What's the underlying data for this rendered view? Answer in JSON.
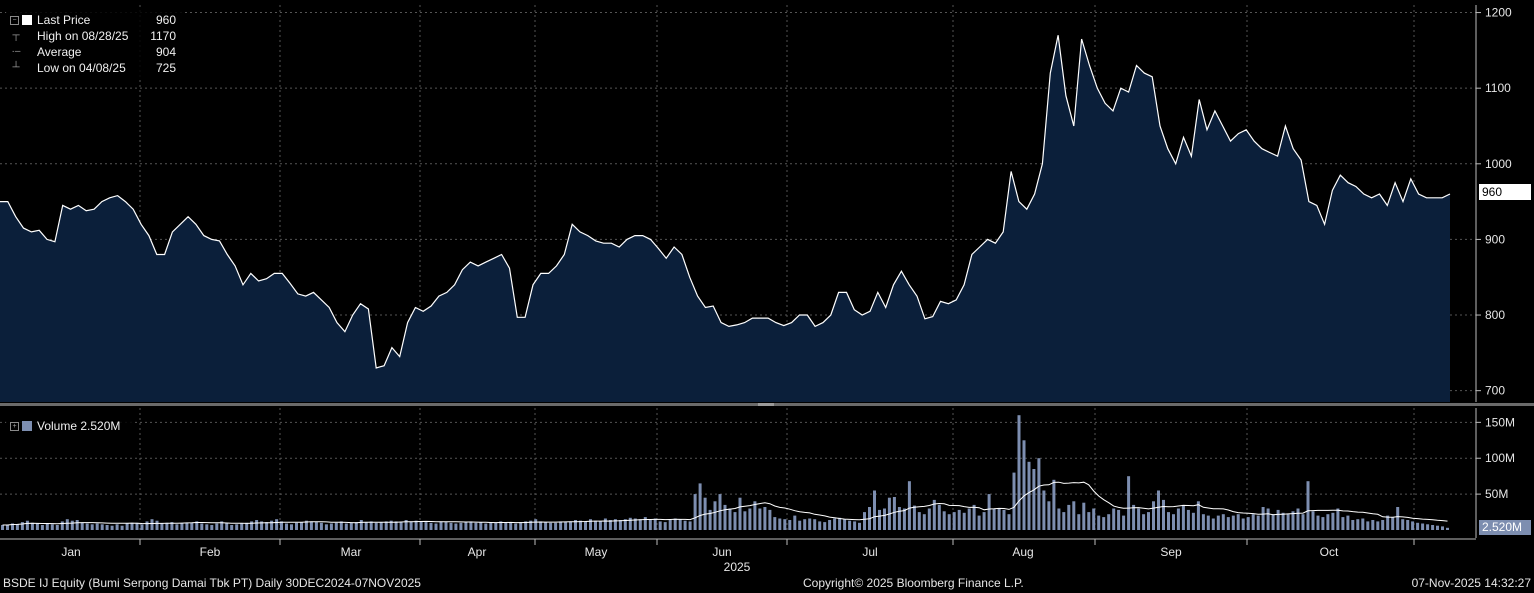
{
  "legend": {
    "last_price_label": "Last Price",
    "last_price_value": "960",
    "high_label": "High on 08/28/25",
    "high_value": "1170",
    "average_label": "Average",
    "average_value": "904",
    "low_label": "Low on 04/08/25",
    "low_value": "725",
    "volume_label": "Volume 2.520M"
  },
  "price_tag": "960",
  "volume_tag": "2.520M",
  "footer": {
    "left": "BSDE IJ Equity (Bumi Serpong Damai Tbk PT) Daily 30DEC2024-07NOV2025",
    "center": "Copyright© 2025 Bloomberg Finance L.P.",
    "right": "07-Nov-2025 14:32:27"
  },
  "colors": {
    "background": "#000000",
    "price_fill": "#0b1f3a",
    "price_line": "#ffffff",
    "volume_bar": "#7d8eb0",
    "volume_avg_line": "#ffffff",
    "grid": "#555555"
  },
  "chart_data": [
    {
      "type": "area",
      "series_name": "Last Price",
      "x_label": "2025",
      "month_labels": [
        "Jan",
        "Feb",
        "Mar",
        "Apr",
        "May",
        "Jun",
        "Jul",
        "Aug",
        "Sep",
        "Oct"
      ],
      "y_ticks": [
        700,
        800,
        900,
        1000,
        1100,
        1200
      ],
      "ylim": [
        685,
        1210
      ],
      "grid": true,
      "y_axis": "right",
      "values": [
        950,
        950,
        930,
        915,
        910,
        912,
        900,
        897,
        945,
        940,
        945,
        938,
        940,
        950,
        955,
        958,
        950,
        940,
        920,
        905,
        880,
        880,
        910,
        920,
        930,
        920,
        905,
        900,
        898,
        880,
        865,
        840,
        855,
        845,
        848,
        855,
        855,
        842,
        828,
        825,
        830,
        820,
        810,
        790,
        778,
        800,
        815,
        808,
        730,
        733,
        757,
        745,
        790,
        810,
        805,
        812,
        825,
        830,
        840,
        860,
        870,
        865,
        870,
        875,
        880,
        862,
        797,
        797,
        840,
        855,
        855,
        865,
        880,
        920,
        910,
        905,
        898,
        895,
        895,
        890,
        900,
        905,
        905,
        900,
        888,
        875,
        890,
        880,
        850,
        825,
        810,
        812,
        790,
        785,
        787,
        790,
        796,
        796,
        796,
        790,
        786,
        790,
        800,
        800,
        785,
        790,
        800,
        830,
        830,
        807,
        800,
        805,
        830,
        810,
        840,
        858,
        840,
        825,
        795,
        798,
        818,
        815,
        820,
        840,
        880,
        890,
        900,
        895,
        910,
        990,
        950,
        940,
        960,
        1000,
        1120,
        1170,
        1090,
        1050,
        1165,
        1130,
        1100,
        1080,
        1070,
        1100,
        1095,
        1130,
        1120,
        1115,
        1050,
        1020,
        1000,
        1035,
        1010,
        1085,
        1045,
        1070,
        1050,
        1030,
        1040,
        1045,
        1030,
        1020,
        1015,
        1010,
        1050,
        1020,
        1005,
        950,
        945,
        920,
        965,
        985,
        975,
        970,
        960,
        955,
        960,
        945,
        975,
        950,
        980,
        960,
        955,
        955,
        955,
        960
      ]
    },
    {
      "type": "bar",
      "series_name": "Volume",
      "y_ticks": [
        "50M",
        "100M",
        "150M"
      ],
      "y_tick_values": [
        50,
        100,
        150
      ],
      "units": "M",
      "ylim": [
        0,
        170
      ],
      "last_value": 2.52,
      "values": [
        7,
        7,
        9,
        8,
        11,
        13,
        10,
        9,
        7,
        9,
        8,
        7,
        12,
        15,
        13,
        14,
        10,
        9,
        8,
        9,
        8,
        7,
        6,
        8,
        6,
        9,
        10,
        10,
        8,
        12,
        15,
        13,
        9,
        10,
        11,
        8,
        9,
        10,
        10,
        12,
        9,
        8,
        7,
        9,
        12,
        10,
        7,
        8,
        9,
        10,
        12,
        14,
        12,
        11,
        13,
        15,
        12,
        9,
        8,
        10,
        11,
        13,
        12,
        11,
        10,
        8,
        9,
        10,
        12,
        9,
        10,
        11,
        14,
        11,
        12,
        10,
        11,
        12,
        13,
        12,
        11,
        14,
        12,
        13,
        12,
        11,
        10,
        9,
        12,
        11,
        10,
        9,
        10,
        11,
        12,
        10,
        11,
        9,
        10,
        10,
        12,
        11,
        10,
        9,
        11,
        12,
        13,
        15,
        12,
        11,
        10,
        10,
        12,
        11,
        12,
        14,
        13,
        12,
        15,
        13,
        12,
        16,
        14,
        15,
        14,
        15,
        17,
        16,
        15,
        18,
        14,
        16,
        12,
        11,
        14,
        16,
        15,
        13,
        12,
        50,
        65,
        45,
        28,
        40,
        50,
        35,
        30,
        25,
        45,
        26,
        30,
        40,
        30,
        32,
        28,
        18,
        16,
        15,
        14,
        20,
        13,
        15,
        16,
        15,
        12,
        11,
        14,
        16,
        17,
        15,
        13,
        12,
        10,
        25,
        32,
        55,
        28,
        30,
        45,
        46,
        32,
        30,
        68,
        34,
        25,
        22,
        30,
        42,
        35,
        26,
        22,
        25,
        28,
        24,
        30,
        35,
        20,
        25,
        50,
        30,
        30,
        28,
        22,
        80,
        160,
        125,
        95,
        85,
        100,
        55,
        40,
        70,
        30,
        25,
        35,
        40,
        22,
        38,
        25,
        30,
        20,
        18,
        22,
        30,
        28,
        20,
        75,
        35,
        30,
        22,
        25,
        40,
        55,
        42,
        25,
        22,
        30,
        35,
        28,
        24,
        40,
        22,
        20,
        16,
        20,
        22,
        18,
        20,
        22,
        16,
        18,
        22,
        20,
        32,
        30,
        22,
        28,
        24,
        22,
        26,
        30,
        22,
        68,
        26,
        20,
        18,
        22,
        24,
        30,
        18,
        20,
        14,
        15,
        16,
        12,
        14,
        12,
        14,
        20,
        18,
        32,
        15,
        14,
        12,
        10,
        9,
        8,
        7,
        6,
        5,
        3
      ]
    }
  ]
}
